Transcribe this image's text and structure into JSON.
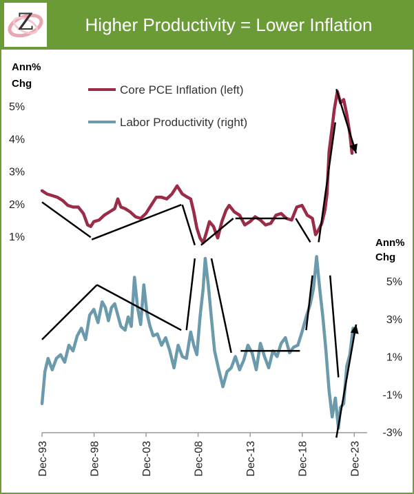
{
  "header": {
    "title": "Higher Productivity = Lower Inflation",
    "logo_letter": "Z"
  },
  "colors": {
    "header_bg": "#6b9b37",
    "inflation": "#9b2c47",
    "productivity": "#6b9aad",
    "trend": "#000000"
  },
  "chart_data": {
    "type": "line",
    "title": "Higher Productivity = Lower Inflation",
    "left_axis_label": [
      "Ann%",
      "Chg"
    ],
    "right_axis_label": [
      "Ann%",
      "Chg"
    ],
    "left_ticks": [
      "5%",
      "4%",
      "3%",
      "2%",
      "1%"
    ],
    "right_ticks": [
      "5%",
      "3%",
      "1%",
      "-1%",
      "-3%"
    ],
    "x_ticks": [
      "Dec-93",
      "Dec-98",
      "Dec-03",
      "Dec-08",
      "Dec-13",
      "Dec-18",
      "Dec-23"
    ],
    "x_range": [
      1993.92,
      2024.1
    ],
    "left_ylim": [
      0.6,
      5.6
    ],
    "right_ylim": [
      -3.5,
      6.0
    ],
    "legend": [
      "Core PCE Inflation (left)",
      "Labor Productivity (right)"
    ],
    "series": [
      {
        "name": "Core PCE Inflation (left)",
        "axis": "left",
        "x": [
          1993.92,
          1994.4,
          1994.9,
          1995.4,
          1995.9,
          1996.4,
          1996.9,
          1997.4,
          1997.9,
          1998.3,
          1998.6,
          1998.9,
          1999.4,
          1999.9,
          2000.4,
          2000.9,
          2001.2,
          2001.5,
          2001.9,
          2002.4,
          2002.9,
          2003.4,
          2003.9,
          2004.4,
          2004.9,
          2005.4,
          2005.9,
          2006.4,
          2006.9,
          2007.4,
          2007.9,
          2008.2,
          2008.5,
          2008.8,
          2009.1,
          2009.4,
          2009.7,
          2010.0,
          2010.4,
          2010.8,
          2011.2,
          2011.6,
          2011.9,
          2012.4,
          2012.9,
          2013.4,
          2013.9,
          2014.4,
          2014.9,
          2015.4,
          2015.9,
          2016.4,
          2016.9,
          2017.4,
          2017.9,
          2018.4,
          2018.9,
          2019.4,
          2019.9,
          2020.2,
          2020.5,
          2020.8,
          2021.1,
          2021.3,
          2021.5,
          2021.8,
          2022.0,
          2022.3,
          2022.6,
          2022.9,
          2023.2,
          2023.5,
          2023.7
        ],
        "values": [
          2.4,
          2.3,
          2.25,
          2.2,
          2.1,
          1.95,
          1.9,
          1.9,
          1.7,
          1.35,
          1.3,
          1.45,
          1.5,
          1.65,
          1.75,
          1.85,
          2.15,
          1.9,
          1.85,
          1.75,
          1.6,
          1.55,
          1.7,
          1.95,
          2.2,
          2.2,
          2.15,
          2.3,
          2.55,
          2.3,
          2.2,
          2.15,
          1.75,
          1.25,
          0.95,
          0.8,
          1.1,
          1.45,
          1.3,
          0.95,
          1.45,
          1.8,
          1.95,
          1.75,
          1.65,
          1.35,
          1.45,
          1.6,
          1.5,
          1.35,
          1.4,
          1.65,
          1.7,
          1.55,
          1.5,
          1.9,
          1.95,
          1.65,
          1.55,
          1.05,
          1.2,
          1.4,
          1.8,
          2.3,
          3.6,
          4.35,
          4.9,
          5.45,
          5.1,
          5.2,
          4.75,
          4.15,
          3.55
        ]
      },
      {
        "name": "Labor Productivity (right)",
        "axis": "right",
        "x": [
          1993.92,
          1994.2,
          1994.5,
          1994.9,
          1995.3,
          1995.7,
          1996.1,
          1996.5,
          1996.9,
          1997.3,
          1997.7,
          1998.1,
          1998.5,
          1998.9,
          1999.3,
          1999.7,
          2000.0,
          2000.3,
          2000.6,
          2000.9,
          2001.2,
          2001.5,
          2001.9,
          2002.2,
          2002.5,
          2002.8,
          2003.1,
          2003.4,
          2003.7,
          2004.0,
          2004.3,
          2004.6,
          2005.0,
          2005.4,
          2005.8,
          2006.2,
          2006.6,
          2007.0,
          2007.4,
          2007.8,
          2008.2,
          2008.5,
          2008.8,
          2009.1,
          2009.4,
          2009.6,
          2009.9,
          2010.2,
          2010.5,
          2010.9,
          2011.3,
          2011.7,
          2012.1,
          2012.5,
          2012.9,
          2013.3,
          2013.7,
          2014.1,
          2014.5,
          2014.9,
          2015.3,
          2015.7,
          2016.1,
          2016.5,
          2016.9,
          2017.3,
          2017.7,
          2018.1,
          2018.5,
          2018.9,
          2019.3,
          2019.7,
          2020.0,
          2020.3,
          2020.6,
          2020.9,
          2021.2,
          2021.5,
          2021.8,
          2022.1,
          2022.4,
          2022.6,
          2022.9,
          2023.2,
          2023.5,
          2023.8
        ],
        "values": [
          -1.5,
          0.2,
          0.9,
          0.3,
          0.9,
          1.1,
          0.7,
          1.6,
          1.3,
          2.1,
          2.5,
          1.9,
          3.2,
          3.5,
          2.8,
          3.9,
          3.6,
          2.9,
          3.6,
          3.8,
          3.2,
          2.6,
          2.4,
          3.1,
          2.6,
          5.2,
          3.6,
          2.7,
          4.8,
          3.3,
          2.6,
          2.1,
          2.2,
          1.6,
          2.0,
          1.3,
          0.4,
          1.6,
          1.0,
          0.9,
          2.3,
          1.6,
          1.1,
          3.1,
          4.6,
          6.2,
          4.8,
          3.0,
          1.3,
          0.3,
          -0.6,
          0.2,
          0.4,
          1.0,
          0.3,
          0.8,
          1.6,
          1.2,
          0.3,
          1.7,
          1.0,
          0.4,
          1.3,
          1.0,
          1.7,
          2.0,
          1.2,
          1.5,
          1.6,
          2.3,
          3.1,
          3.8,
          4.6,
          6.3,
          4.6,
          3.1,
          1.3,
          -0.8,
          -2.2,
          -1.2,
          -2.8,
          -1.7,
          -1.5,
          0.5,
          1.1,
          2.5
        ]
      }
    ],
    "trend_lines": [
      {
        "axis": "left",
        "x": [
          1993.92,
          1998.6
        ],
        "values": [
          2.05,
          0.97
        ]
      },
      {
        "axis": "left",
        "x": [
          1998.7,
          2007.3
        ],
        "values": [
          0.9,
          1.97
        ]
      },
      {
        "axis": "left",
        "x": [
          2007.4,
          2008.6
        ],
        "values": [
          1.97,
          0.73
        ]
      },
      {
        "axis": "left",
        "x": [
          2009.2,
          2012.3
        ],
        "values": [
          0.73,
          1.55
        ]
      },
      {
        "axis": "left",
        "x": [
          2012.5,
          2017.5
        ],
        "values": [
          1.55,
          1.55
        ]
      },
      {
        "axis": "left",
        "x": [
          2018.3,
          2019.7
        ],
        "values": [
          1.55,
          0.82
        ]
      },
      {
        "axis": "left",
        "x": [
          2020.5,
          2022.1
        ],
        "values": [
          0.82,
          4.5
        ]
      },
      {
        "axis": "left",
        "x": [
          2022.2,
          2024.1
        ],
        "values": [
          5.52,
          3.55
        ]
      },
      {
        "axis": "right",
        "x": [
          1993.92,
          1999.2
        ],
        "values": [
          1.9,
          4.8
        ]
      },
      {
        "axis": "right",
        "x": [
          1999.2,
          2007.3
        ],
        "values": [
          4.8,
          2.4
        ]
      },
      {
        "axis": "right",
        "x": [
          2007.8,
          2008.6
        ],
        "values": [
          2.4,
          6.2
        ]
      },
      {
        "axis": "right",
        "x": [
          2010.2,
          2012.1
        ],
        "values": [
          6.2,
          1.2
        ]
      },
      {
        "axis": "right",
        "x": [
          2013.0,
          2018.7
        ],
        "values": [
          1.3,
          1.3
        ]
      },
      {
        "axis": "right",
        "x": [
          2019.3,
          2019.9
        ],
        "values": [
          2.4,
          5.3
        ]
      },
      {
        "axis": "right",
        "x": [
          2021.6,
          2022.4
        ],
        "values": [
          5.3,
          -0.1
        ]
      },
      {
        "axis": "right",
        "x": [
          2022.2,
          2024.1
        ],
        "values": [
          -3.3,
          2.7
        ]
      }
    ]
  }
}
